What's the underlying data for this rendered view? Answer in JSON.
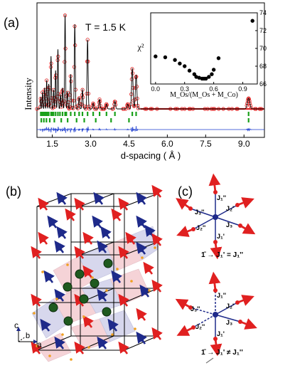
{
  "figure": {
    "panel_a": {
      "label": "(a)",
      "temperature": "T = 1.5 K",
      "ylabel": "Intensity",
      "xlabel": "d-spacing ( Å )",
      "xticks": [
        "1.5",
        "3.0",
        "4.5",
        "6.0",
        "7.5",
        "9.0"
      ],
      "colors": {
        "observed": "#e02020",
        "calculated": "#000000",
        "bragg": "#1aa01a",
        "difference": "#1f3fd0"
      }
    },
    "panel_a_inset": {
      "ylabel": "χ²",
      "xlabel": "M_Os/(M_Os + M_Co)",
      "xticks": [
        "0.0",
        "0.3",
        "0.6",
        "0.9"
      ],
      "yticks": [
        "66",
        "68",
        "70",
        "72",
        "74"
      ]
    },
    "panel_b": {
      "label": "(b)",
      "axis_c": "c",
      "axis_b": "b",
      "axis_a": "a"
    },
    "panel_c": {
      "label": "(c)",
      "top_labels": [
        "J₁''",
        "J₂'",
        "J₃''",
        "J₂''",
        "J₃",
        "J₁'"
      ],
      "top_relation": "1̄ → J₁' = J₁''",
      "bottom_labels": [
        "J₁''",
        "J₂'",
        "J₃''",
        "J₂''",
        "J₃",
        "J₁'"
      ],
      "bottom_relation": "1̄ → J₁' ≠ J₁''"
    }
  },
  "chart_data": [
    {
      "type": "scatter",
      "title": "",
      "xlabel": "d-spacing ( Å )",
      "ylabel": "Intensity",
      "xlim": [
        0.9,
        9.8
      ],
      "x_ticks": [
        1.5,
        3.0,
        4.5,
        6.0,
        7.5,
        9.0
      ],
      "peaks": [
        {
          "x": 1.05,
          "h": 0.12
        },
        {
          "x": 1.12,
          "h": 0.18
        },
        {
          "x": 1.2,
          "h": 0.22
        },
        {
          "x": 1.28,
          "h": 0.3
        },
        {
          "x": 1.36,
          "h": 0.26
        },
        {
          "x": 1.45,
          "h": 0.55
        },
        {
          "x": 1.55,
          "h": 0.2
        },
        {
          "x": 1.63,
          "h": 0.4
        },
        {
          "x": 1.72,
          "h": 0.62
        },
        {
          "x": 1.82,
          "h": 0.15
        },
        {
          "x": 1.9,
          "h": 0.22
        },
        {
          "x": 2.0,
          "h": 0.98
        },
        {
          "x": 2.1,
          "h": 0.18
        },
        {
          "x": 2.22,
          "h": 0.36
        },
        {
          "x": 2.38,
          "h": 0.88
        },
        {
          "x": 2.55,
          "h": 0.12
        },
        {
          "x": 2.68,
          "h": 0.2
        },
        {
          "x": 2.88,
          "h": 0.72
        },
        {
          "x": 3.1,
          "h": 0.06
        },
        {
          "x": 3.35,
          "h": 0.1
        },
        {
          "x": 3.62,
          "h": 0.05
        },
        {
          "x": 3.95,
          "h": 0.08
        },
        {
          "x": 4.45,
          "h": 0.05
        },
        {
          "x": 4.63,
          "h": 0.42
        },
        {
          "x": 4.78,
          "h": 0.35
        },
        {
          "x": 9.18,
          "h": 0.11
        }
      ],
      "bragg_ticks": [
        1.05,
        1.1,
        1.15,
        1.2,
        1.25,
        1.3,
        1.36,
        1.45,
        1.5,
        1.55,
        1.63,
        1.72,
        1.8,
        1.9,
        2.0,
        2.05,
        2.22,
        2.38,
        2.55,
        2.68,
        2.88,
        3.1,
        3.35,
        3.62,
        3.95,
        4.63,
        4.78,
        9.18
      ],
      "bragg_ticks_row2": [
        1.07,
        1.17,
        1.27,
        1.4,
        1.58,
        1.85,
        2.1,
        2.45,
        2.75,
        3.2,
        3.8,
        4.5,
        9.18
      ]
    },
    {
      "type": "scatter",
      "title": "",
      "xlabel": "M_Os/(M_Os + M_Co)",
      "ylabel": "χ²",
      "xlim": [
        -0.05,
        1.05
      ],
      "ylim": [
        66,
        74
      ],
      "x": [
        0.0,
        0.1,
        0.2,
        0.25,
        0.3,
        0.35,
        0.4,
        0.42,
        0.45,
        0.48,
        0.5,
        0.52,
        0.55,
        0.58,
        0.6,
        0.65,
        1.0
      ],
      "y": [
        69.1,
        69.0,
        68.7,
        68.3,
        68.0,
        67.5,
        67.1,
        66.8,
        66.7,
        66.6,
        66.6,
        66.6,
        66.8,
        67.1,
        67.6,
        68.9,
        73.1
      ]
    }
  ]
}
